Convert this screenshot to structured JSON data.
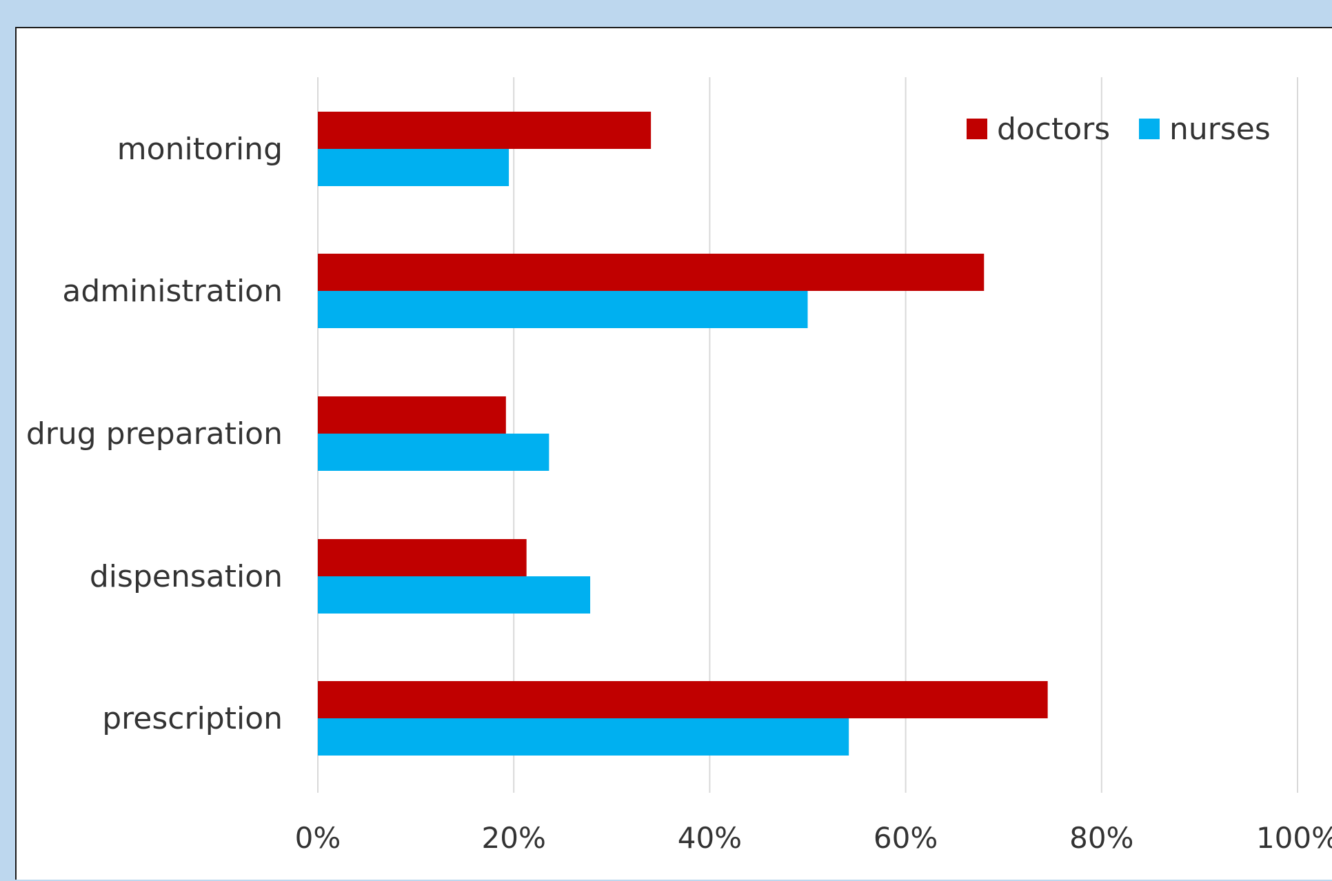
{
  "chart_data": {
    "type": "bar",
    "orientation": "horizontal",
    "categories": [
      "monitoring",
      "administration",
      "drug preparation",
      "dispensation",
      "prescription"
    ],
    "series": [
      {
        "name": "doctors",
        "color": "#C00000",
        "values": [
          34,
          68,
          19.2,
          21.3,
          74.5
        ]
      },
      {
        "name": "nurses",
        "color": "#00B0F0",
        "values": [
          19.5,
          50,
          23.6,
          27.8,
          54.2
        ]
      }
    ],
    "xlim": [
      0,
      100
    ],
    "xticks": [
      "0%",
      "20%",
      "40%",
      "60%",
      "80%",
      "100%"
    ],
    "grid": true,
    "legend_position": "top-right"
  }
}
